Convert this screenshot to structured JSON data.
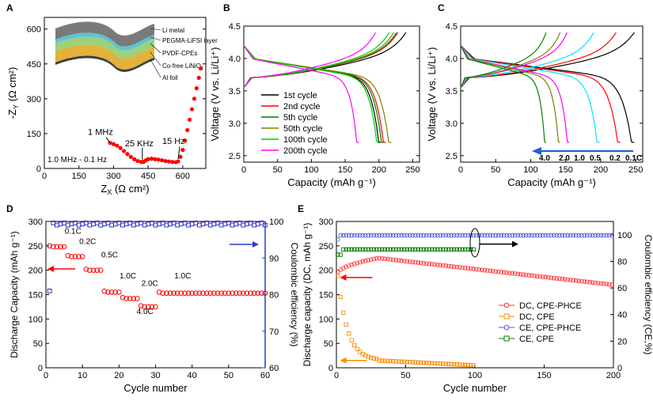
{
  "panel_labels": [
    "A",
    "B",
    "C",
    "D",
    "E"
  ],
  "chart_data": [
    {
      "panel": "A",
      "type": "scatter",
      "xlabel": "Z",
      "xlabel_sub": "X",
      "xlabel_unit": "(Ω cm²)",
      "ylabel": "-Z",
      "ylabel_sub": "Y",
      "ylabel_unit": "(Ω cm²)",
      "xlim": [
        0,
        700
      ],
      "ylim": [
        0,
        650
      ],
      "xticks": [
        0,
        150,
        300,
        450,
        600
      ],
      "yticks": [
        0,
        150,
        300,
        450,
        600
      ],
      "annotations": [
        {
          "text": "1 MHz",
          "x": 285,
          "y": 110
        },
        {
          "text": "25 KHz",
          "x": 425,
          "y": 28
        },
        {
          "text": "15 Hz",
          "x": 580,
          "y": 30
        },
        {
          "text": "1.0 MHz - 0.1 Hz"
        }
      ],
      "inset_layers": [
        "Li metal",
        "PEGMA-LiFSI layer",
        "PVDF-CPEs",
        "Co-free LiNiO₂",
        "Al foil"
      ],
      "series": [
        {
          "name": "EIS",
          "points": [
            [
              285,
              110
            ],
            [
              300,
              105
            ],
            [
              315,
              98
            ],
            [
              330,
              88
            ],
            [
              345,
              75
            ],
            [
              360,
              62
            ],
            [
              375,
              50
            ],
            [
              390,
              40
            ],
            [
              405,
              32
            ],
            [
              420,
              28
            ],
            [
              430,
              28
            ],
            [
              440,
              35
            ],
            [
              450,
              40
            ],
            [
              465,
              42
            ],
            [
              480,
              40
            ],
            [
              495,
              38
            ],
            [
              510,
              35
            ],
            [
              525,
              32
            ],
            [
              540,
              30
            ],
            [
              555,
              28
            ],
            [
              570,
              27
            ],
            [
              580,
              30
            ],
            [
              590,
              50
            ],
            [
              600,
              80
            ],
            [
              610,
              120
            ],
            [
              620,
              165
            ],
            [
              630,
              210
            ],
            [
              640,
              255
            ],
            [
              650,
              300
            ],
            [
              660,
              345
            ],
            [
              670,
              390
            ],
            [
              678,
              430
            ]
          ]
        }
      ]
    },
    {
      "panel": "B",
      "type": "line",
      "xlabel": "Capacity (mAh g⁻¹)",
      "ylabel": "Voltage (V vs. Li/Li⁺)",
      "xlim": [
        0,
        260
      ],
      "ylim": [
        2.4,
        4.5
      ],
      "xticks": [
        0,
        50,
        100,
        150,
        200,
        250
      ],
      "yticks": [
        2.5,
        3.0,
        3.5,
        4.0,
        4.5
      ],
      "legend": [
        "1st cycle",
        "2nd cycle",
        "5th cycle",
        "50th cycle",
        "100th cycle",
        "200th cycle"
      ],
      "series": [
        {
          "name": "1st cycle",
          "color": "#000000",
          "charge_end": 240,
          "discharge_end": 203
        },
        {
          "name": "2nd cycle",
          "color": "#ff0000",
          "charge_end": 228,
          "discharge_end": 210
        },
        {
          "name": "5th cycle",
          "color": "#008000",
          "charge_end": 226,
          "discharge_end": 207
        },
        {
          "name": "50th cycle",
          "color": "#808000",
          "charge_end": 222,
          "discharge_end": 218
        },
        {
          "name": "100th cycle",
          "color": "#00cc00",
          "charge_end": 215,
          "discharge_end": 200
        },
        {
          "name": "200th cycle",
          "color": "#ff00ff",
          "charge_end": 195,
          "discharge_end": 170
        }
      ]
    },
    {
      "panel": "C",
      "type": "line",
      "xlabel": "Capacity (mAh g⁻¹)",
      "ylabel": "Voltage (V vs. Li/Li⁺)",
      "xlim": [
        0,
        260
      ],
      "ylim": [
        2.4,
        4.5
      ],
      "xticks": [
        0,
        50,
        100,
        150,
        200,
        250
      ],
      "yticks": [
        2.5,
        3.0,
        3.5,
        4.0,
        4.5
      ],
      "rate_labels": [
        "4.0",
        "2.0",
        "1.0",
        "0.5",
        "0.2",
        "0.1C"
      ],
      "series": [
        {
          "name": "0.1C",
          "color": "#000000",
          "charge_end": 248,
          "discharge_end": 248
        },
        {
          "name": "0.2",
          "color": "#ff0000",
          "charge_end": 222,
          "discharge_end": 228
        },
        {
          "name": "0.5",
          "color": "#00e5ff",
          "charge_end": 190,
          "discharge_end": 198
        },
        {
          "name": "1.0",
          "color": "#ff00ff",
          "charge_end": 152,
          "discharge_end": 155
        },
        {
          "name": "2.0",
          "color": "#808000",
          "charge_end": 142,
          "discharge_end": 142
        },
        {
          "name": "4.0",
          "color": "#008000",
          "charge_end": 122,
          "discharge_end": 122
        }
      ]
    },
    {
      "panel": "D",
      "type": "scatter",
      "xlabel": "Cycle number",
      "ylabel": "Discharge Capacity (mAh g⁻¹)",
      "y2label": "Coulombic efficiency (%)",
      "xlim": [
        0,
        60
      ],
      "ylim": [
        0,
        300
      ],
      "y2lim": [
        60,
        100
      ],
      "xticks": [
        0,
        10,
        20,
        30,
        40,
        50,
        60
      ],
      "yticks": [
        0,
        50,
        100,
        150,
        200,
        250,
        300
      ],
      "y2ticks": [
        60,
        70,
        80,
        90,
        100
      ],
      "rate_annotations": [
        "0.1C",
        "0.2C",
        "0.5C",
        "1.0C",
        "2.0C",
        "4.0C",
        "1.0C"
      ],
      "series": [
        {
          "name": "Discharge capacity",
          "color": "#ff0000",
          "segments": [
            {
              "from": 1,
              "to": 5,
              "value": 248
            },
            {
              "from": 6,
              "to": 10,
              "value": 228
            },
            {
              "from": 11,
              "to": 15,
              "value": 200
            },
            {
              "from": 16,
              "to": 20,
              "value": 155
            },
            {
              "from": 21,
              "to": 25,
              "value": 142
            },
            {
              "from": 26,
              "to": 30,
              "value": 125
            },
            {
              "from": 31,
              "to": 60,
              "value": 153
            }
          ]
        },
        {
          "name": "Coulombic efficiency",
          "color": "#3333cc",
          "first_value": 81,
          "steady_value": 99.3
        }
      ]
    },
    {
      "panel": "E",
      "type": "scatter",
      "xlabel": "Cycle number",
      "ylabel": "Discharge capacity (DC, mAh g⁻¹)",
      "y2label": "Coulombic efficiency (CE,%)",
      "xlim": [
        0,
        200
      ],
      "ylim": [
        0,
        300
      ],
      "y2lim": [
        0,
        110
      ],
      "xticks": [
        0,
        50,
        100,
        150,
        200
      ],
      "yticks": [
        0,
        50,
        100,
        150,
        200,
        250,
        300
      ],
      "y2ticks": [
        0,
        20,
        40,
        60,
        80,
        100
      ],
      "legend": [
        "DC, CPE-PHCE",
        "DC, CPE",
        "CE, CPE-PHCE",
        "CE, CPE"
      ],
      "series": [
        {
          "name": "DC, CPE-PHCE",
          "color": "#ff3333",
          "start": 190,
          "peak": 225,
          "peak_cycle": 30,
          "end": 170,
          "cycles": 200
        },
        {
          "name": "DC, CPE",
          "color": "#ff8c00",
          "start": 200,
          "drop_to": 20,
          "end": 5,
          "cycles": 100
        },
        {
          "name": "CE, CPE-PHCE",
          "color": "#5555dd",
          "value": 99.5,
          "cycles": 200
        },
        {
          "name": "CE, CPE",
          "color": "#008000",
          "start": 85,
          "value": 89,
          "cycles": 100
        }
      ]
    }
  ]
}
